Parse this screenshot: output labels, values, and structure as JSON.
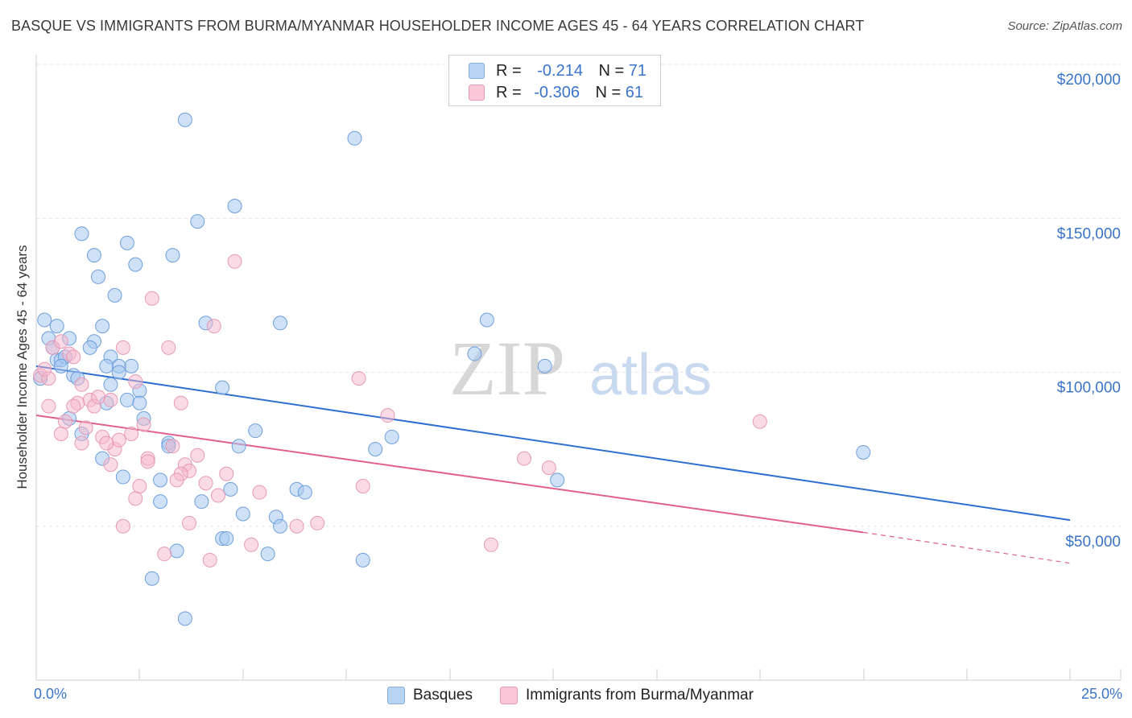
{
  "header": {
    "title": "BASQUE VS IMMIGRANTS FROM BURMA/MYANMAR HOUSEHOLDER INCOME AGES 45 - 64 YEARS CORRELATION CHART",
    "source": "Source: ZipAtlas.com"
  },
  "legend": {
    "rows": [
      {
        "r_label": "R =",
        "r_value": "-0.214",
        "n_label": "N =",
        "n_value": "71"
      },
      {
        "r_label": "R =",
        "r_value": "-0.306",
        "n_label": "N =",
        "n_value": "61"
      }
    ]
  },
  "bottom_legend": {
    "series1": "Basques",
    "series2": "Immigrants from Burma/Myanmar"
  },
  "watermark": {
    "zip": "ZIP",
    "atlas": "atlas"
  },
  "x_axis": {
    "min_label": "0.0%",
    "max_label": "25.0%"
  },
  "chart_data": {
    "type": "scatter",
    "title": "BASQUE VS IMMIGRANTS FROM BURMA/MYANMAR HOUSEHOLDER INCOME AGES 45 - 64 YEARS CORRELATION CHART",
    "xlabel": "",
    "ylabel": "Householder Income Ages 45 - 64 years",
    "xlim": [
      0,
      25
    ],
    "ylim": [
      0,
      200000
    ],
    "x_ticks": [
      "0.0%",
      "25.0%"
    ],
    "y_ticks": [
      "$50,000",
      "$100,000",
      "$150,000",
      "$200,000"
    ],
    "y_tick_values": [
      50000,
      100000,
      150000,
      200000
    ],
    "grid": true,
    "legend_position": "top-center",
    "colors": {
      "series1": "#a8c8f0",
      "series1_line": "#2f6fd0",
      "series2": "#f5b8cc",
      "series2_line": "#e06090",
      "axis_text": "#3a74c9"
    },
    "series": [
      {
        "name": "Basques",
        "r": -0.214,
        "n": 71,
        "trend": {
          "x0": 0,
          "y0": 102000,
          "x1": 25,
          "y1": 52000
        },
        "points": [
          [
            3.6,
            182000
          ],
          [
            7.7,
            176000
          ],
          [
            3.9,
            149000
          ],
          [
            4.8,
            154000
          ],
          [
            1.1,
            145000
          ],
          [
            2.2,
            142000
          ],
          [
            1.4,
            138000
          ],
          [
            3.3,
            138000
          ],
          [
            2.4,
            135000
          ],
          [
            1.5,
            131000
          ],
          [
            1.9,
            125000
          ],
          [
            4.1,
            116000
          ],
          [
            5.9,
            116000
          ],
          [
            10.9,
            117000
          ],
          [
            0.2,
            117000
          ],
          [
            0.5,
            115000
          ],
          [
            1.6,
            115000
          ],
          [
            0.3,
            111000
          ],
          [
            0.8,
            111000
          ],
          [
            1.4,
            110000
          ],
          [
            0.4,
            108000
          ],
          [
            1.3,
            108000
          ],
          [
            10.6,
            106000
          ],
          [
            1.8,
            105000
          ],
          [
            0.5,
            104000
          ],
          [
            0.6,
            104000
          ],
          [
            0.7,
            105000
          ],
          [
            2.3,
            102000
          ],
          [
            1.7,
            102000
          ],
          [
            2.0,
            102000
          ],
          [
            0.6,
            102000
          ],
          [
            12.3,
            102000
          ],
          [
            2.0,
            100000
          ],
          [
            0.9,
            99000
          ],
          [
            1.0,
            98000
          ],
          [
            1.8,
            96000
          ],
          [
            4.5,
            95000
          ],
          [
            2.5,
            94000
          ],
          [
            2.2,
            91000
          ],
          [
            2.5,
            90000
          ],
          [
            1.7,
            90000
          ],
          [
            2.6,
            85000
          ],
          [
            0.8,
            85000
          ],
          [
            5.3,
            81000
          ],
          [
            1.1,
            80000
          ],
          [
            8.6,
            79000
          ],
          [
            3.2,
            77000
          ],
          [
            3.2,
            76000
          ],
          [
            4.9,
            76000
          ],
          [
            8.2,
            75000
          ],
          [
            20.0,
            74000
          ],
          [
            1.6,
            72000
          ],
          [
            2.1,
            66000
          ],
          [
            3.0,
            65000
          ],
          [
            12.6,
            65000
          ],
          [
            4.7,
            62000
          ],
          [
            6.3,
            62000
          ],
          [
            6.5,
            61000
          ],
          [
            3.0,
            58000
          ],
          [
            4.0,
            58000
          ],
          [
            5.0,
            54000
          ],
          [
            5.8,
            53000
          ],
          [
            5.9,
            50000
          ],
          [
            4.5,
            46000
          ],
          [
            4.6,
            46000
          ],
          [
            3.4,
            42000
          ],
          [
            5.6,
            41000
          ],
          [
            7.9,
            39000
          ],
          [
            2.8,
            33000
          ],
          [
            3.6,
            20000
          ],
          [
            0.1,
            98000
          ]
        ]
      },
      {
        "name": "Immigrants from Burma/Myanmar",
        "r": -0.306,
        "n": 61,
        "trend": {
          "x0": 0,
          "y0": 86000,
          "x1": 20,
          "y1": 48000,
          "dash_x1": 25,
          "dash_y1": 38000
        },
        "points": [
          [
            0.1,
            99000
          ],
          [
            0.3,
            98000
          ],
          [
            0.4,
            108000
          ],
          [
            0.6,
            110000
          ],
          [
            0.8,
            106000
          ],
          [
            0.9,
            105000
          ],
          [
            1.1,
            96000
          ],
          [
            1.0,
            90000
          ],
          [
            1.3,
            91000
          ],
          [
            1.4,
            89000
          ],
          [
            1.8,
            91000
          ],
          [
            2.1,
            108000
          ],
          [
            2.4,
            97000
          ],
          [
            2.6,
            83000
          ],
          [
            2.3,
            80000
          ],
          [
            1.9,
            75000
          ],
          [
            2.0,
            78000
          ],
          [
            1.6,
            79000
          ],
          [
            1.7,
            77000
          ],
          [
            1.1,
            77000
          ],
          [
            0.6,
            80000
          ],
          [
            0.3,
            89000
          ],
          [
            0.9,
            89000
          ],
          [
            1.5,
            92000
          ],
          [
            3.2,
            108000
          ],
          [
            2.8,
            124000
          ],
          [
            4.3,
            115000
          ],
          [
            4.8,
            136000
          ],
          [
            3.5,
            90000
          ],
          [
            3.3,
            76000
          ],
          [
            2.7,
            72000
          ],
          [
            2.7,
            71000
          ],
          [
            3.6,
            70000
          ],
          [
            3.7,
            68000
          ],
          [
            3.9,
            73000
          ],
          [
            3.5,
            67000
          ],
          [
            2.4,
            59000
          ],
          [
            2.1,
            50000
          ],
          [
            3.4,
            65000
          ],
          [
            4.1,
            64000
          ],
          [
            4.4,
            60000
          ],
          [
            4.6,
            67000
          ],
          [
            5.4,
            61000
          ],
          [
            6.3,
            50000
          ],
          [
            6.8,
            51000
          ],
          [
            7.8,
            98000
          ],
          [
            8.5,
            86000
          ],
          [
            11.8,
            72000
          ],
          [
            12.4,
            69000
          ],
          [
            11.0,
            44000
          ],
          [
            17.5,
            84000
          ],
          [
            7.9,
            63000
          ],
          [
            5.2,
            44000
          ],
          [
            4.2,
            39000
          ],
          [
            3.1,
            41000
          ],
          [
            3.7,
            51000
          ],
          [
            1.8,
            70000
          ],
          [
            0.7,
            84000
          ],
          [
            1.2,
            82000
          ],
          [
            2.5,
            63000
          ],
          [
            0.2,
            101000
          ]
        ]
      }
    ]
  }
}
